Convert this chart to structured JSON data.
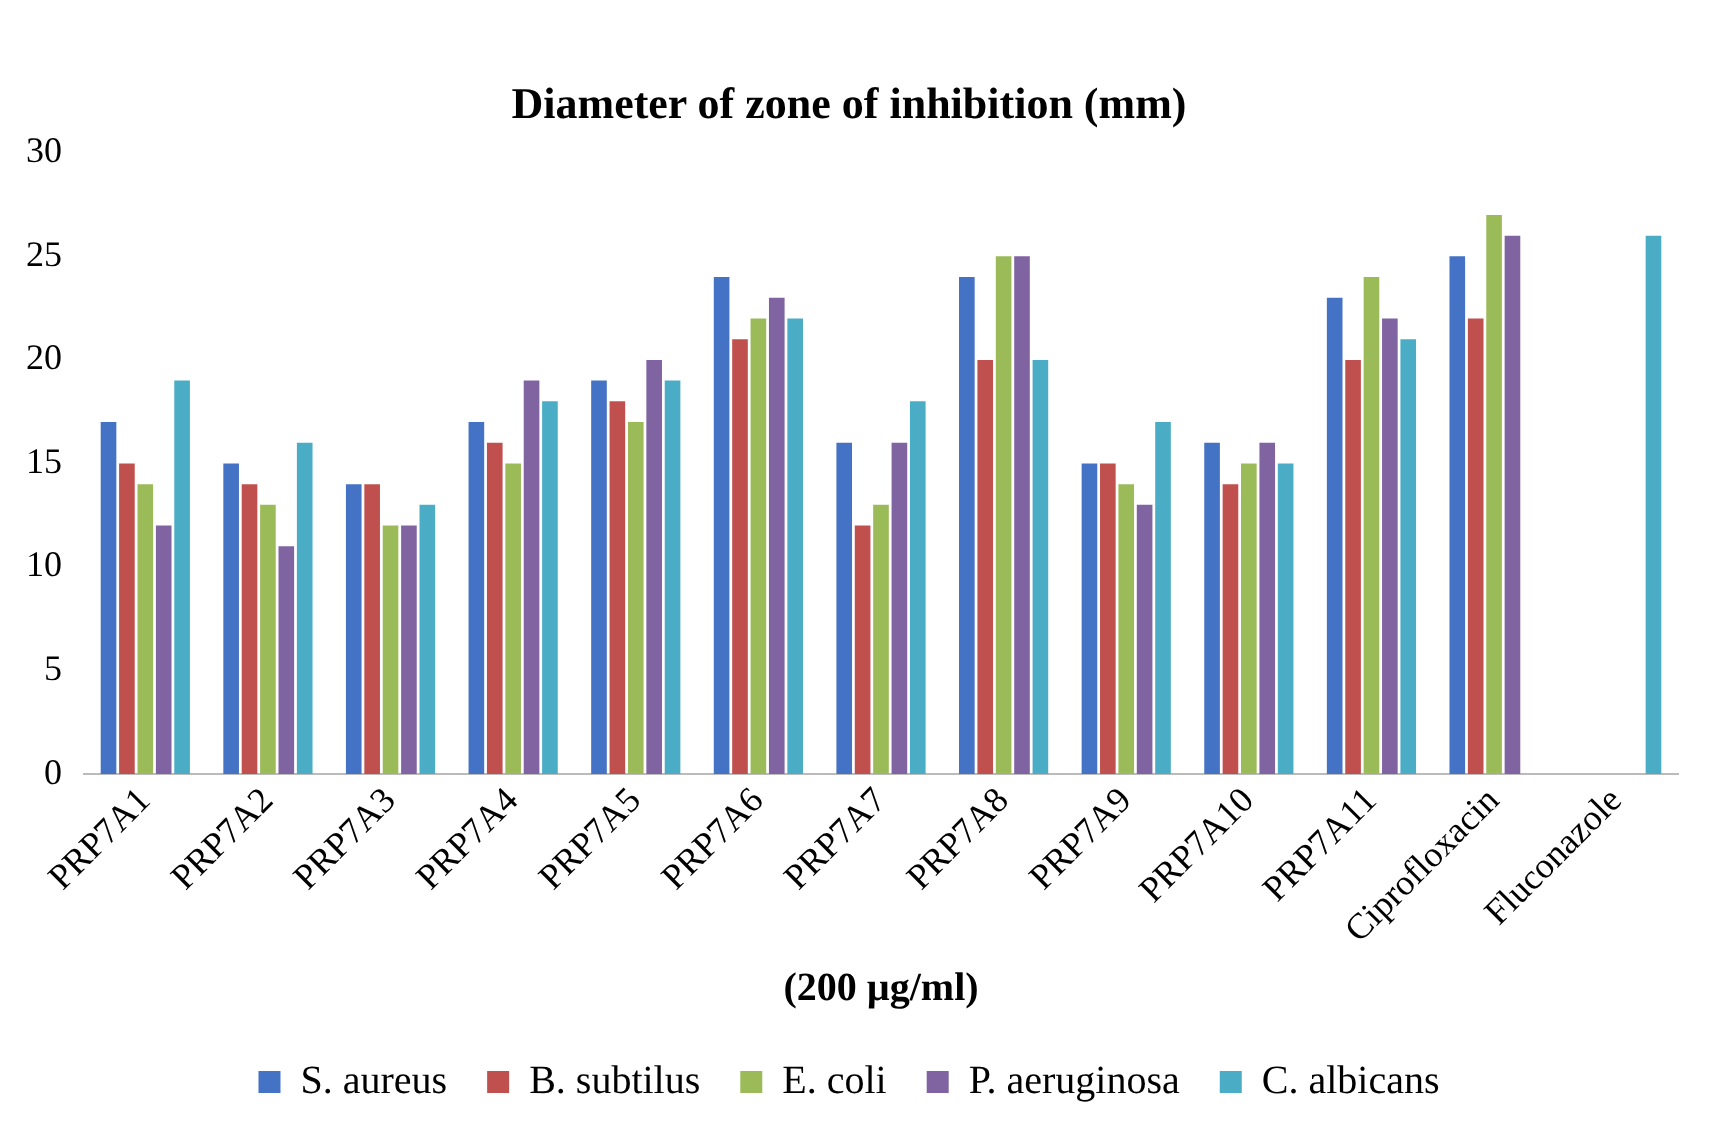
{
  "chart_data": {
    "type": "bar",
    "title": "Diameter of zone of inhibition (mm)",
    "xlabel": "(200 µg/ml)",
    "categories": [
      "PRP7A1",
      "PRP7A2",
      "PRP7A3",
      "PRP7A4",
      "PRP7A5",
      "PRP7A6",
      "PRP7A7",
      "PRP7A8",
      "PRP7A9",
      "PRP7A10",
      "PRP7A11",
      "Ciprofloxacin",
      "Fluconazole"
    ],
    "series": [
      {
        "name": "S. aureus",
        "color": "#4472c4",
        "values": [
          17,
          15,
          14,
          17,
          19,
          24,
          16,
          24,
          15,
          16,
          23,
          25,
          null
        ]
      },
      {
        "name": "B. subtilus",
        "color": "#c0504d",
        "values": [
          15,
          14,
          14,
          16,
          18,
          21,
          12,
          20,
          15,
          14,
          20,
          22,
          null
        ]
      },
      {
        "name": "E. coli",
        "color": "#9bbb59",
        "values": [
          14,
          13,
          12,
          15,
          17,
          22,
          13,
          25,
          14,
          15,
          24,
          27,
          null
        ]
      },
      {
        "name": "P. aeruginosa",
        "color": "#8064a2",
        "values": [
          12,
          11,
          12,
          19,
          20,
          23,
          16,
          25,
          13,
          16,
          22,
          26,
          null
        ]
      },
      {
        "name": "C. albicans",
        "color": "#4bacc6",
        "values": [
          19,
          16,
          13,
          18,
          19,
          22,
          18,
          20,
          17,
          15,
          21,
          null,
          26
        ]
      }
    ],
    "ylim": [
      0,
      30
    ],
    "yticks": [
      0,
      5,
      10,
      15,
      20,
      25,
      30
    ],
    "grid": false,
    "legend": "bottom"
  }
}
